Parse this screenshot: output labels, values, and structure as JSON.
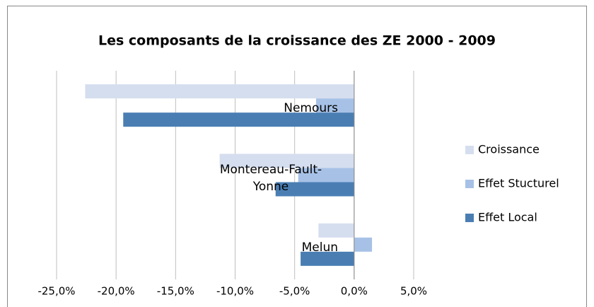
{
  "chart_data": {
    "type": "hbar",
    "title": "Les composants de la croissance des ZE 2000 - 2009",
    "categories": [
      "Nemours",
      "Montereau-Fault-Yonne",
      "Melun"
    ],
    "series": [
      {
        "name": "Croissance",
        "color": "#d5deef",
        "values": [
          -22.6,
          -11.3,
          -3.0
        ]
      },
      {
        "name": "Effet Stucturel",
        "color": "#a7c1e6",
        "values": [
          -3.2,
          -4.7,
          1.5
        ]
      },
      {
        "name": "Effet Local",
        "color": "#4a7eb3",
        "values": [
          -19.4,
          -6.6,
          -4.5
        ]
      }
    ],
    "xlim": [
      -25,
      5
    ],
    "xticks": [
      {
        "value": -25,
        "label": "-25,0%"
      },
      {
        "value": -20,
        "label": "-20,0%"
      },
      {
        "value": -15,
        "label": "-15,0%"
      },
      {
        "value": -10,
        "label": "-10,0%"
      },
      {
        "value": -5,
        "label": "-5,0%"
      },
      {
        "value": 0,
        "label": "0,0%"
      },
      {
        "value": 5,
        "label": "5,0%"
      }
    ],
    "grid": true,
    "legend": "right"
  }
}
